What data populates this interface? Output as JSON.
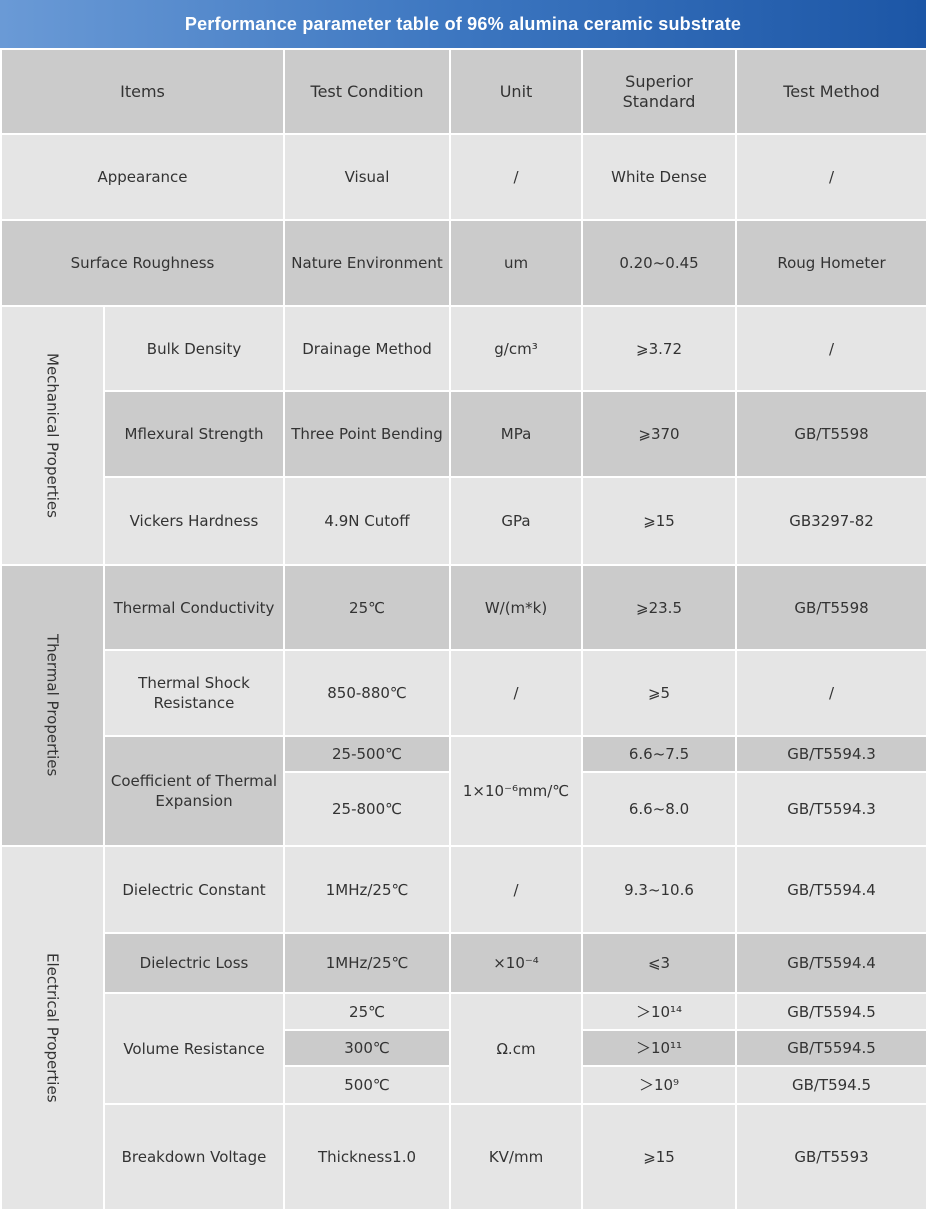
{
  "title": "Performance parameter table of 96% alumina ceramic substrate",
  "table": {
    "header": [
      "Items",
      "Test Condition",
      "Unit",
      "Superior Standard",
      "Test Method"
    ],
    "rows": [
      [
        "Appearance",
        "Visual",
        "/",
        "White Dense",
        "/"
      ],
      [
        "Surface Roughness",
        "Nature Environment",
        "um",
        "0.20~0.45",
        "Roug Hometer"
      ]
    ],
    "groups": [
      {
        "name": "Mechanical Properties",
        "rows": [
          [
            "Bulk Density",
            "Drainage Method",
            "g/cm³",
            "⩾3.72",
            "/"
          ],
          [
            "Mflexural Strength",
            "Three Point Bending",
            "MPa",
            "⩾370",
            "GB/T5598"
          ],
          [
            "Vickers Hardness",
            "4.9N Cutoff",
            "GPa",
            "⩾15",
            "GB3297-82"
          ]
        ]
      },
      {
        "name": "Thermal Properties",
        "rows": [
          [
            "Thermal Conductivity",
            "25℃",
            "W/(m*k)",
            "⩾23.5",
            "GB/T5598"
          ],
          [
            "Thermal Shock Resistance",
            "850-880℃",
            "/",
            "⩾5",
            "/"
          ]
        ],
        "multi": {
          "item": "Coefficient of Thermal Expansion",
          "unit": "1×10⁻⁶mm/℃",
          "conditions": [
            [
              "25-500℃",
              "6.6~7.5",
              "GB/T5594.3"
            ],
            [
              "25-800℃",
              "6.6~8.0",
              "GB/T5594.3"
            ]
          ]
        }
      },
      {
        "name": "Electrical Properties",
        "rows": [
          [
            "Dielectric Constant",
            "1MHz/25℃",
            "/",
            "9.3~10.6",
            "GB/T5594.4"
          ],
          [
            "Dielectric Loss",
            "1MHz/25℃",
            "×10⁻⁴",
            "⩽3",
            "GB/T5594.4"
          ]
        ],
        "multi": {
          "item": "Volume Resistance",
          "unit": "Ω.cm",
          "conditions": [
            [
              "25℃",
              "＞10¹⁴",
              "GB/T5594.5"
            ],
            [
              "300℃",
              "＞10¹¹",
              "GB/T5594.5"
            ],
            [
              "500℃",
              "＞10⁹",
              "GB/T594.5"
            ]
          ]
        },
        "last": [
          "Breakdown Voltage",
          "Thickness1.0",
          "KV/mm",
          "⩾15",
          "GB/T5593"
        ]
      }
    ]
  }
}
